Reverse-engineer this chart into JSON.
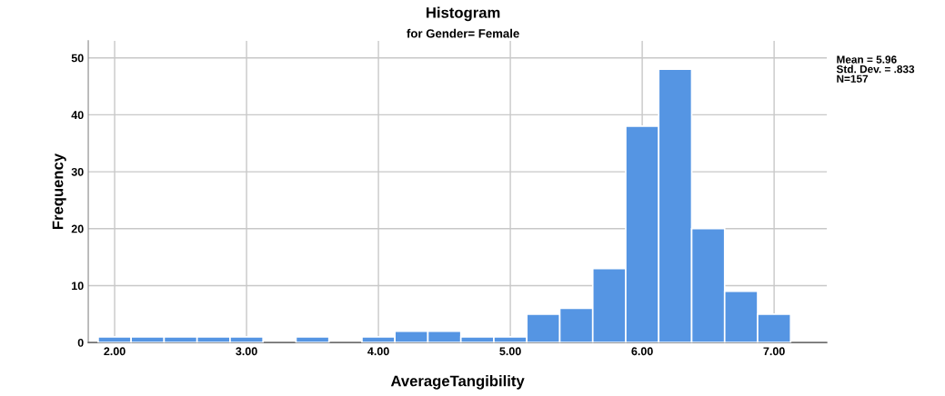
{
  "chart_data": {
    "type": "histogram",
    "title": "Histogram",
    "subtitle": "for Gender= Female",
    "xlabel": "AverageTangibility",
    "ylabel": "Frequency",
    "bins": [
      1.875,
      2.125,
      2.375,
      2.625,
      2.875,
      3.125,
      3.375,
      3.625,
      3.875,
      4.125,
      4.375,
      4.625,
      4.875,
      5.125,
      5.375,
      5.625,
      5.875,
      6.125,
      6.375,
      6.625,
      6.875,
      7.125
    ],
    "values": [
      1,
      1,
      1,
      1,
      1,
      0,
      1,
      0,
      1,
      2,
      2,
      1,
      1,
      5,
      6,
      13,
      38,
      48,
      20,
      9,
      5
    ],
    "color": "#5595e3",
    "xlim": [
      1.8,
      7.4
    ],
    "xticks": [
      {
        "value": 2,
        "label": "2.00"
      },
      {
        "value": 3,
        "label": "3.00"
      },
      {
        "value": 4,
        "label": "4.00"
      },
      {
        "value": 5,
        "label": "5.00"
      },
      {
        "value": 6,
        "label": "6.00"
      },
      {
        "value": 7,
        "label": "7.00"
      }
    ],
    "ylim": [
      0,
      53
    ],
    "yticks": [
      0,
      10,
      20,
      30,
      40,
      50
    ],
    "grid": true,
    "annotations": [
      "Mean = 5.96\nStd. Dev. = .833\nN=157"
    ]
  }
}
